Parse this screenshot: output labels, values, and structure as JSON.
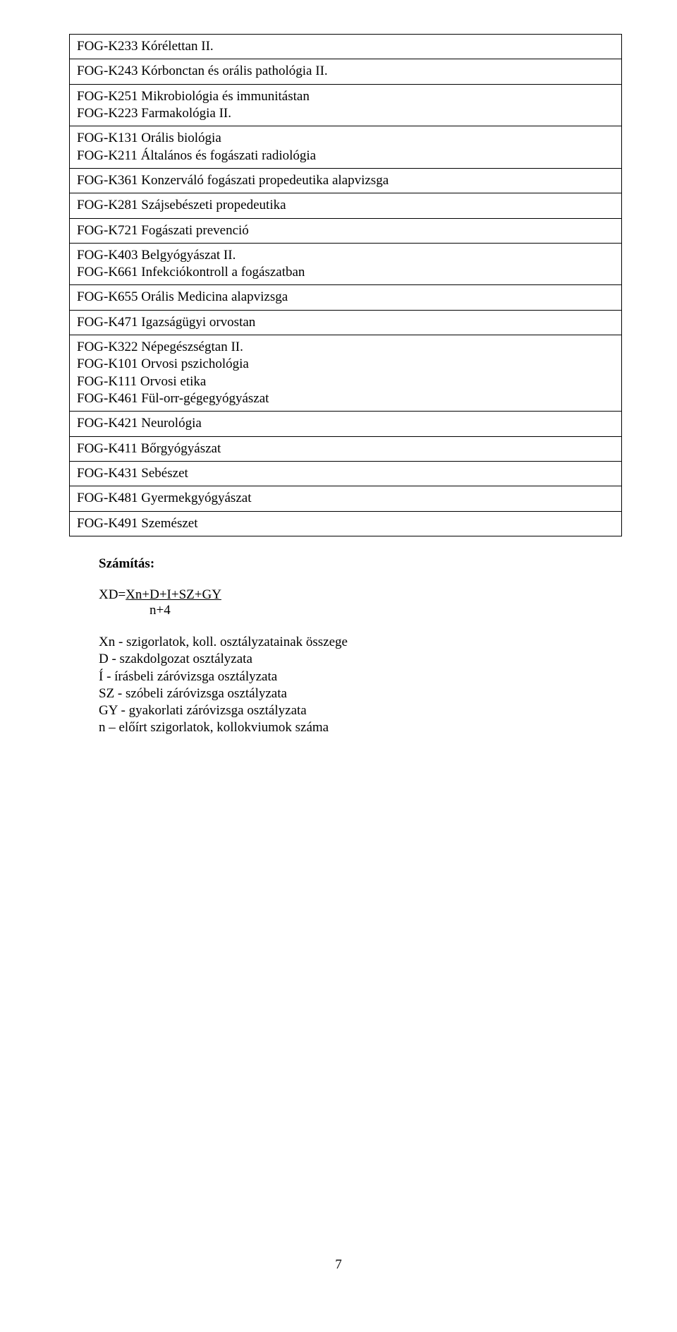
{
  "tableRows": [
    {
      "lines": [
        "FOG-K233 Kórélettan II."
      ]
    },
    {
      "lines": [
        "FOG-K243 Kórbonctan és orális pathológia II."
      ]
    },
    {
      "lines": [
        "FOG-K251 Mikrobiológia és immunitástan",
        "FOG-K223 Farmakológia II."
      ]
    },
    {
      "lines": [
        "FOG-K131 Orális biológia",
        "FOG-K211 Általános és fogászati radiológia"
      ]
    },
    {
      "lines": [
        "FOG-K361 Konzerváló fogászati propedeutika alapvizsga"
      ]
    },
    {
      "lines": [
        "FOG-K281 Szájsebészeti propedeutika"
      ]
    },
    {
      "lines": [
        "FOG-K721 Fogászati prevenció"
      ]
    },
    {
      "lines": [
        "FOG-K403 Belgyógyászat II.",
        "FOG-K661 Infekciókontroll a fogászatban"
      ]
    },
    {
      "lines": [
        "FOG-K655 Orális Medicina alapvizsga"
      ]
    },
    {
      "lines": [
        "FOG-K471 Igazságügyi orvostan"
      ]
    },
    {
      "lines": [
        "FOG-K322 Népegészségtan II.",
        "FOG-K101 Orvosi pszichológia",
        "FOG-K111 Orvosi etika",
        "FOG-K461 Fül-orr-gégegyógyászat"
      ]
    },
    {
      "lines": [
        "FOG-K421 Neurológia"
      ]
    },
    {
      "lines": [
        "FOG-K411 Bőrgyógyászat"
      ]
    },
    {
      "lines": [
        "FOG-K431 Sebészet"
      ]
    },
    {
      "lines": [
        "FOG-K481 Gyermekgyógyászat"
      ]
    },
    {
      "lines": [
        "FOG-K491 Szemészet"
      ]
    }
  ],
  "heading": "Számítás:",
  "formula": {
    "prefix": "XD=",
    "underlined": "Xn+D+I+SZ+GY",
    "bottom": "n+4"
  },
  "listItems": [
    "Xn - szigorlatok, koll. osztályzatainak összege",
    "D - szakdolgozat osztályzata",
    "Í - írásbeli záróvizsga osztályzata",
    "SZ - szóbeli záróvizsga osztályzata",
    "GY - gyakorlati záróvizsga osztályzata",
    "n – előírt szigorlatok, kollokviumok száma"
  ],
  "pageNumber": "7"
}
